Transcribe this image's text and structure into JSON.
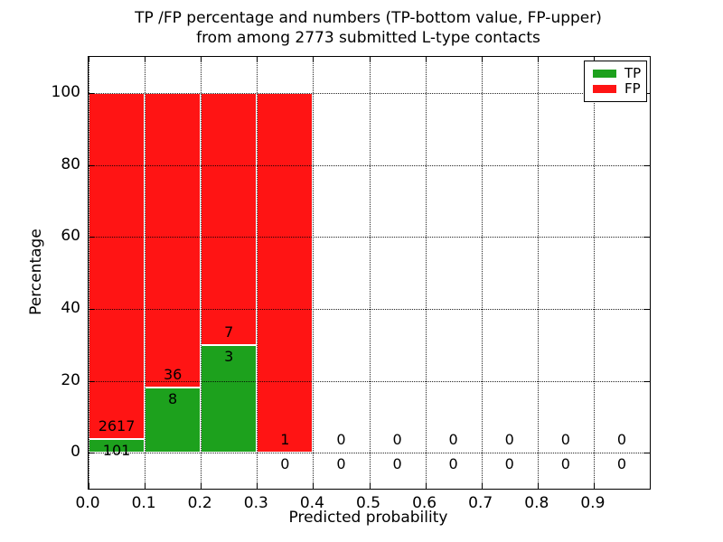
{
  "chart_data": {
    "type": "bar",
    "stacked": true,
    "title_line1": "TP /FP percentage and numbers (TP-bottom value, FP-upper)",
    "title_line2": "from among 2773 submitted L-type contacts",
    "total_submitted_contacts": 2773,
    "xlabel": "Predicted probability",
    "ylabel": "Percentage",
    "xlim": [
      0.0,
      1.0
    ],
    "ylim": [
      -10,
      110
    ],
    "grid": true,
    "x_ticks": [
      {
        "value": 0.0,
        "label": "0.0"
      },
      {
        "value": 0.1,
        "label": "0.1"
      },
      {
        "value": 0.2,
        "label": "0.2"
      },
      {
        "value": 0.3,
        "label": "0.3"
      },
      {
        "value": 0.4,
        "label": "0.4"
      },
      {
        "value": 0.5,
        "label": "0.5"
      },
      {
        "value": 0.6,
        "label": "0.6"
      },
      {
        "value": 0.7,
        "label": "0.7"
      },
      {
        "value": 0.8,
        "label": "0.8"
      },
      {
        "value": 0.9,
        "label": "0.9"
      }
    ],
    "y_ticks": [
      {
        "value": 0,
        "label": "0"
      },
      {
        "value": 20,
        "label": "20"
      },
      {
        "value": 40,
        "label": "40"
      },
      {
        "value": 60,
        "label": "60"
      },
      {
        "value": 80,
        "label": "80"
      },
      {
        "value": 100,
        "label": "100"
      }
    ],
    "bins": [
      {
        "range": [
          0.0,
          0.1
        ],
        "tp_count": 101,
        "fp_count": 2617,
        "tp_pct": 3.72,
        "fp_pct": 96.28
      },
      {
        "range": [
          0.1,
          0.2
        ],
        "tp_count": 8,
        "fp_count": 36,
        "tp_pct": 18.18,
        "fp_pct": 81.82
      },
      {
        "range": [
          0.2,
          0.3
        ],
        "tp_count": 3,
        "fp_count": 7,
        "tp_pct": 30.0,
        "fp_pct": 70.0
      },
      {
        "range": [
          0.3,
          0.4
        ],
        "tp_count": 0,
        "fp_count": 1,
        "tp_pct": 0.0,
        "fp_pct": 100.0
      },
      {
        "range": [
          0.4,
          0.5
        ],
        "tp_count": 0,
        "fp_count": 0,
        "tp_pct": 0.0,
        "fp_pct": 0.0
      },
      {
        "range": [
          0.5,
          0.6
        ],
        "tp_count": 0,
        "fp_count": 0,
        "tp_pct": 0.0,
        "fp_pct": 0.0
      },
      {
        "range": [
          0.6,
          0.7
        ],
        "tp_count": 0,
        "fp_count": 0,
        "tp_pct": 0.0,
        "fp_pct": 0.0
      },
      {
        "range": [
          0.7,
          0.8
        ],
        "tp_count": 0,
        "fp_count": 0,
        "tp_pct": 0.0,
        "fp_pct": 0.0
      },
      {
        "range": [
          0.8,
          0.9
        ],
        "tp_count": 0,
        "fp_count": 0,
        "tp_pct": 0.0,
        "fp_pct": 0.0
      },
      {
        "range": [
          0.9,
          1.0
        ],
        "tp_count": 0,
        "fp_count": 0,
        "tp_pct": 0.0,
        "fp_pct": 0.0
      }
    ],
    "legend": [
      {
        "label": "TP",
        "color": "#1da11d"
      },
      {
        "label": "FP",
        "color": "#ff1414"
      }
    ],
    "legend_position": "upper right",
    "colors": {
      "tp": "#1da11d",
      "fp": "#ff1414",
      "bar_edge": "#ffffff",
      "text": "#000000",
      "background": "#ffffff"
    }
  }
}
